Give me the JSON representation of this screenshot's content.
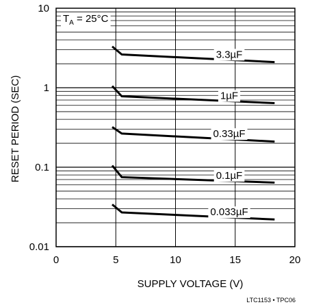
{
  "chart_data": {
    "type": "line",
    "xlabel": "SUPPLY VOLTAGE (V)",
    "ylabel": "RESET PERIOD (SEC)",
    "xlim": [
      0,
      20
    ],
    "ylim": [
      0.01,
      10
    ],
    "yscale": "log",
    "grid": true,
    "x_ticks": [
      "0",
      "5",
      "10",
      "15",
      "20"
    ],
    "y_ticks": [
      "0.01",
      "0.1",
      "1",
      "10"
    ],
    "annotation": {
      "prefix": "T",
      "subscript": "A",
      "suffix": " = 25°C"
    },
    "footnote": "LTC1153 • TPC06",
    "series": [
      {
        "name": "3.3µF",
        "x": [
          4.7,
          5.5,
          18.3
        ],
        "y": [
          3.3,
          2.62,
          2.1
        ]
      },
      {
        "name": "1µF",
        "x": [
          4.7,
          5.5,
          18.3
        ],
        "y": [
          1.05,
          0.78,
          0.64
        ]
      },
      {
        "name": "0.33µF",
        "x": [
          4.7,
          5.5,
          18.3
        ],
        "y": [
          0.32,
          0.265,
          0.21
        ]
      },
      {
        "name": "0.1µF",
        "x": [
          4.7,
          5.5,
          18.3
        ],
        "y": [
          0.105,
          0.075,
          0.064
        ]
      },
      {
        "name": "0.033µF",
        "x": [
          4.7,
          5.5,
          18.3
        ],
        "y": [
          0.034,
          0.027,
          0.022
        ]
      }
    ]
  }
}
